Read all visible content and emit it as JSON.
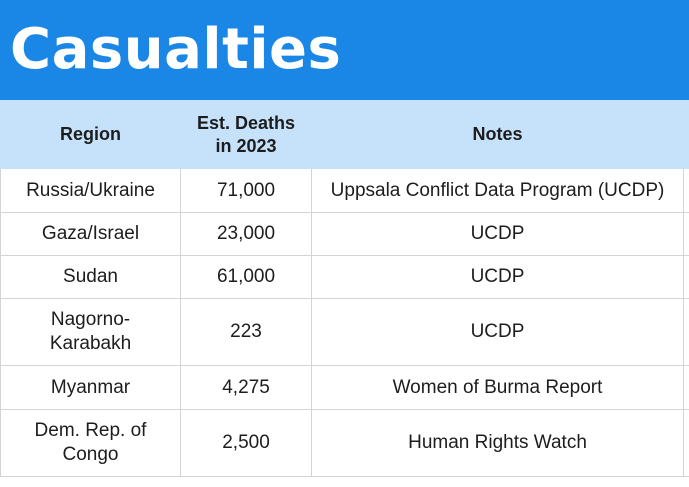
{
  "title": "Casualties",
  "colors": {
    "banner": "#1a87e6",
    "header_row": "#c6e2fb",
    "grid": "#d4d4d4"
  },
  "table": {
    "headers": {
      "region": "Region",
      "deaths_line1": "Est. Deaths",
      "deaths_line2": "in 2023",
      "notes": "Notes"
    },
    "rows": [
      {
        "region_line1": "Russia/Ukraine",
        "region_line2": "",
        "deaths": "71,000",
        "notes": "Uppsala Conflict Data Program (UCDP)"
      },
      {
        "region_line1": "Gaza/Israel",
        "region_line2": "",
        "deaths": "23,000",
        "notes": "UCDP"
      },
      {
        "region_line1": "Sudan",
        "region_line2": "",
        "deaths": "61,000",
        "notes": "UCDP"
      },
      {
        "region_line1": "Nagorno-",
        "region_line2": "Karabakh",
        "deaths": "223",
        "notes": "UCDP"
      },
      {
        "region_line1": "Myanmar",
        "region_line2": "",
        "deaths": "4,275",
        "notes": "Women of Burma Report"
      },
      {
        "region_line1": "Dem. Rep. of",
        "region_line2": "Congo",
        "deaths": "2,500",
        "notes": "Human Rights Watch"
      }
    ]
  }
}
